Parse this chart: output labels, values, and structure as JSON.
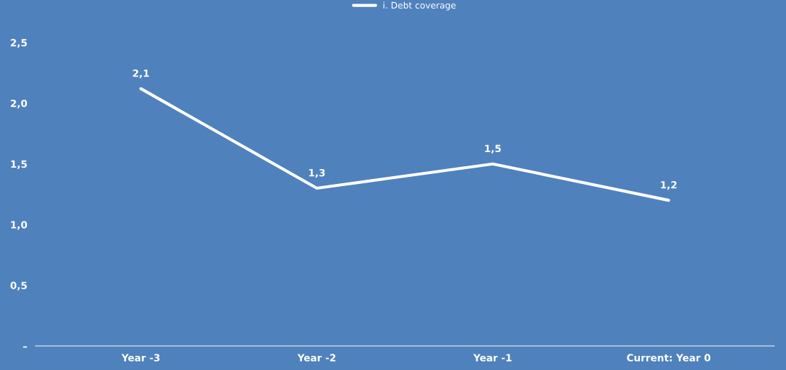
{
  "chart_data": {
    "type": "line",
    "categories": [
      "Year -3",
      "Year -2",
      "Year -1",
      "Current: Year 0"
    ],
    "series": [
      {
        "name": "i. Debt coverage",
        "color": "#ffffff",
        "values": [
          2.12,
          1.3,
          1.5,
          1.2
        ],
        "value_labels": [
          "2,1",
          "1,3",
          "1,5",
          "1,2"
        ]
      }
    ],
    "ylim": [
      0,
      2.5
    ],
    "yticks": [
      {
        "value": 0,
        "label": "–"
      },
      {
        "value": 0.5,
        "label": "0,5"
      },
      {
        "value": 1.0,
        "label": "1,0"
      },
      {
        "value": 1.5,
        "label": "1,5"
      },
      {
        "value": 2.0,
        "label": "2,0"
      },
      {
        "value": 2.5,
        "label": "2,5"
      }
    ],
    "grid": false,
    "legend": "top",
    "marker": "none",
    "line_style": "solid"
  }
}
